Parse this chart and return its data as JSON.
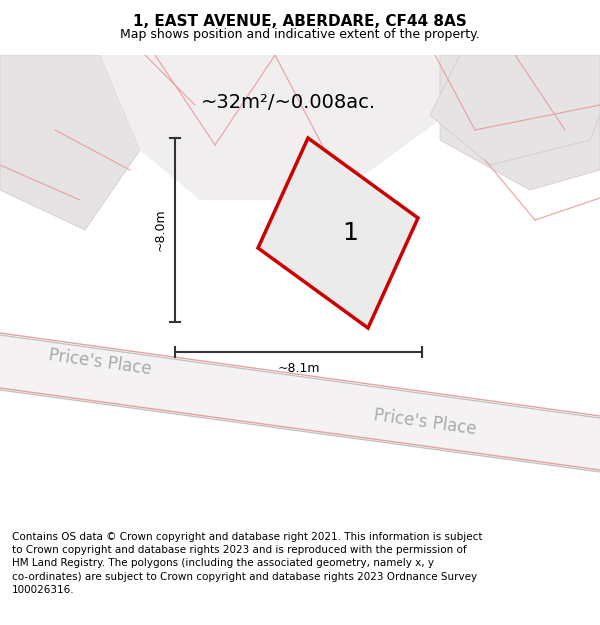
{
  "title": "1, EAST AVENUE, ABERDARE, CF44 8AS",
  "subtitle": "Map shows position and indicative extent of the property.",
  "area_label": "~32m²/~0.008ac.",
  "plot_label": "1",
  "dim_width": "~8.1m",
  "dim_height": "~8.0m",
  "footer_text": "Contains OS data © Crown copyright and database right 2021. This information is subject\nto Crown copyright and database rights 2023 and is reproduced with the permission of\nHM Land Registry. The polygons (including the associated geometry, namely x, y\nco-ordinates) are subject to Crown copyright and database rights 2023 Ordnance Survey\n100026316.",
  "map_bg": "#edeaea",
  "plot_color": "#cc0000",
  "plot_fill": "#ebebeb",
  "dim_color": "#333333",
  "street_label_color": "#aaaaaa",
  "title_fontsize": 11,
  "subtitle_fontsize": 9,
  "area_label_fontsize": 14,
  "plot_label_fontsize": 18,
  "dim_fontsize": 9,
  "footer_fontsize": 7.5,
  "street_fontsize": 12
}
